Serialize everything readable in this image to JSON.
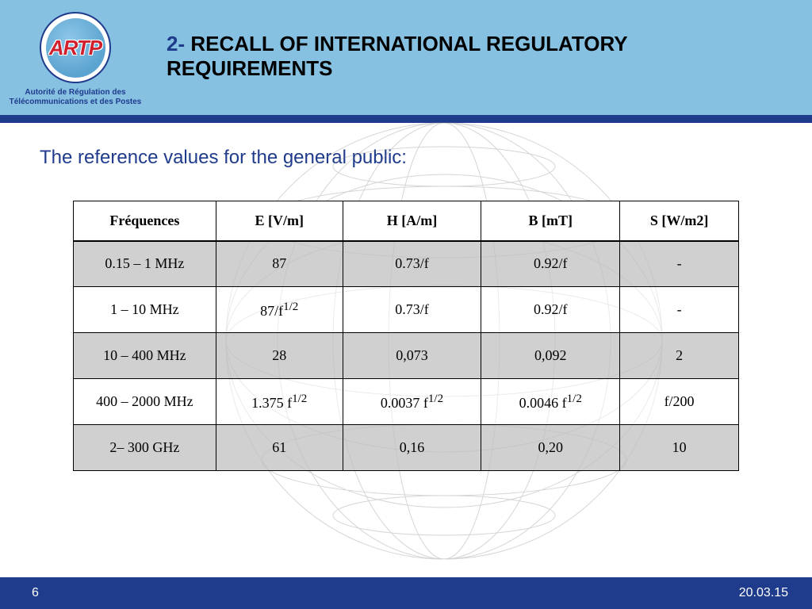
{
  "header": {
    "logo_acronym": "ARTP",
    "logo_caption_line1": "Autorité de Régulation des",
    "logo_caption_line2": "Télécommunications et des Postes",
    "title_number": "2-",
    "title_line1": " RECALL OF INTERNATIONAL REGULATORY",
    "title_line2": "REQUIREMENTS"
  },
  "content": {
    "subtitle": "The reference values for the general public:",
    "table": {
      "columns": [
        "Fréquences",
        "E [V/m]",
        "H [A/m]",
        "B [mT]",
        "S [W/m2]"
      ],
      "rows": [
        {
          "shaded": true,
          "cells": [
            "0.15 – 1 MHz",
            "87",
            "0.73/f",
            "0.92/f",
            "-"
          ]
        },
        {
          "shaded": false,
          "cells": [
            "1 – 10 MHz",
            "87/f^{1/2}",
            "0.73/f",
            "0.92/f",
            "-"
          ]
        },
        {
          "shaded": true,
          "cells": [
            "10 – 400 MHz",
            "28",
            "0,073",
            "0,092",
            "2"
          ]
        },
        {
          "shaded": false,
          "cells": [
            "400 – 2000 MHz",
            "1.375 f^{1/2}",
            "0.0037 f^{1/2}",
            "0.0046 f^{1/2}",
            "f/200"
          ]
        },
        {
          "shaded": true,
          "cells": [
            "2– 300 GHz",
            "61",
            "0,16",
            "0,20",
            "10"
          ]
        }
      ]
    }
  },
  "footer": {
    "page_number": "6",
    "date": "20.03.15"
  },
  "style": {
    "header_bg": "#86c1e2",
    "accent_bar": "#1f3b8c",
    "footer_bg": "#1f3b8c",
    "subtitle_color": "#1f3b8c",
    "shaded_row_bg": "#c0c0c0",
    "title_num_color": "#1f3b8c",
    "logo_red": "#d01f2e"
  }
}
